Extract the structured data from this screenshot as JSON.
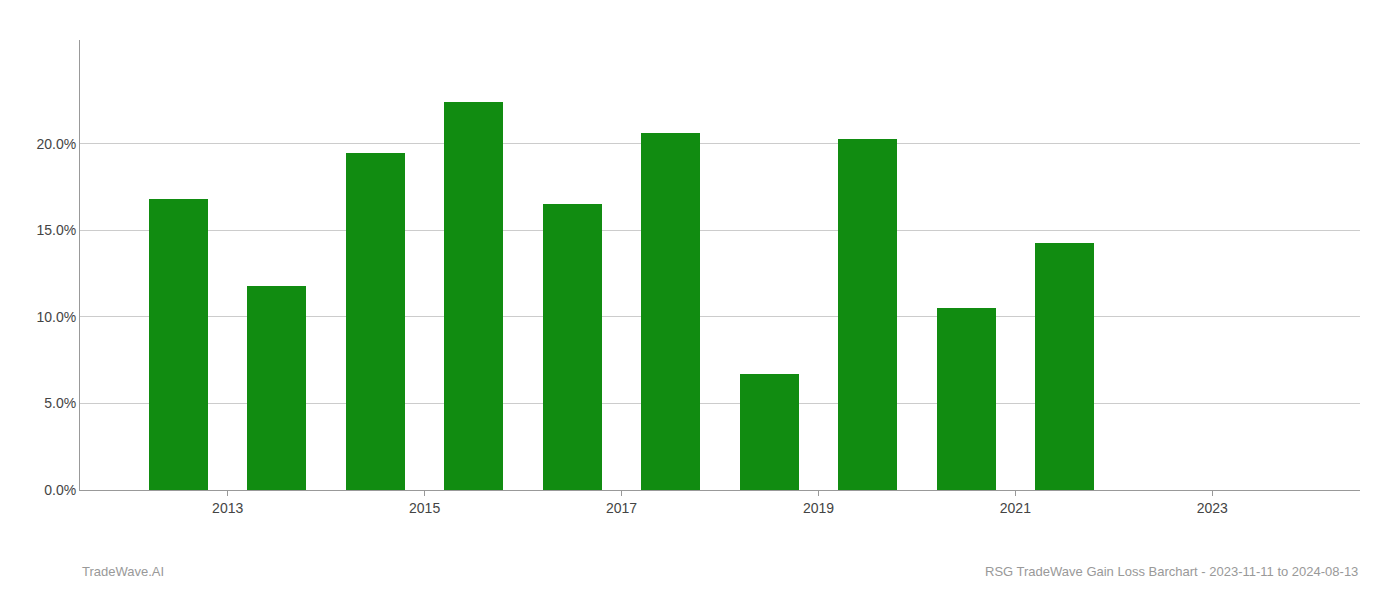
{
  "chart_data": {
    "type": "bar",
    "x": [
      2012.5,
      2013.5,
      2014.5,
      2015.5,
      2016.5,
      2017.5,
      2018.5,
      2019.5,
      2020.5,
      2021.5
    ],
    "values": [
      0.168,
      0.118,
      0.195,
      0.224,
      0.165,
      0.206,
      0.067,
      0.203,
      0.105,
      0.143
    ],
    "color": "#118c11",
    "xlim": [
      2011.5,
      2024.5
    ],
    "xticks": [
      2013,
      2015,
      2017,
      2019,
      2021,
      2023
    ],
    "ylim": [
      0,
      0.26
    ],
    "yticks": [
      {
        "value": 0.0,
        "label": "0.0%"
      },
      {
        "value": 0.05,
        "label": "5.0%"
      },
      {
        "value": 0.1,
        "label": "10.0%"
      },
      {
        "value": 0.15,
        "label": "15.0%"
      },
      {
        "value": 0.2,
        "label": "20.0%"
      }
    ],
    "grid": true,
    "annotations": [
      "TradeWave.AI",
      "RSG TradeWave Gain Loss Barchart - 2023-11-11 to 2024-08-13"
    ]
  }
}
